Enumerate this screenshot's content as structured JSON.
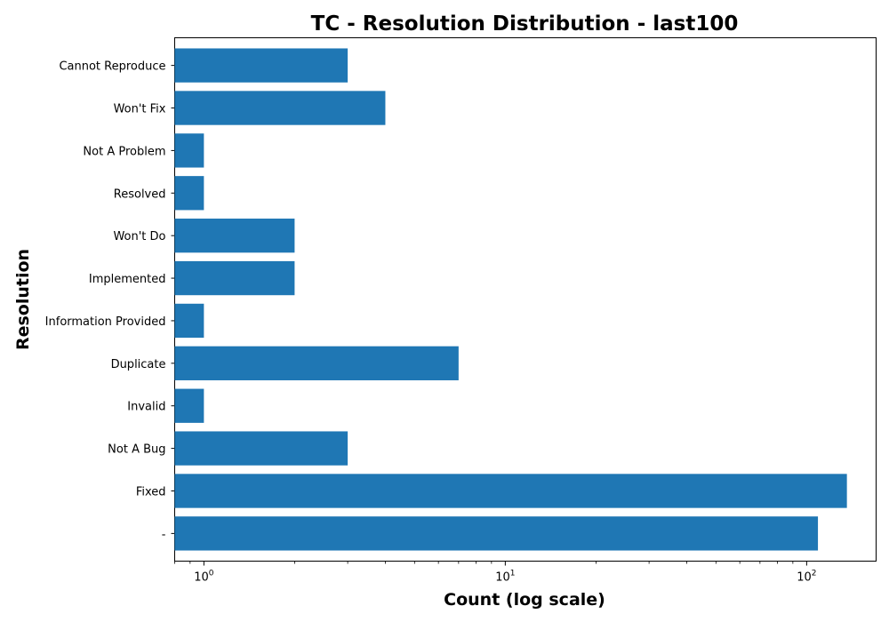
{
  "chart_data": {
    "type": "bar",
    "orientation": "horizontal",
    "title": "TC - Resolution Distribution - last100",
    "xlabel": "Count (log scale)",
    "ylabel": "Resolution",
    "x_scale": "log",
    "xlim": [
      0.8,
      170
    ],
    "x_ticks": [
      {
        "value": 1,
        "base": "10",
        "exp": "0"
      },
      {
        "value": 10,
        "base": "10",
        "exp": "1"
      },
      {
        "value": 100,
        "base": "10",
        "exp": "2"
      }
    ],
    "categories": [
      "-",
      "Fixed",
      "Not A Bug",
      "Invalid",
      "Duplicate",
      "Information Provided",
      "Implemented",
      "Won't Do",
      "Resolved",
      "Not A Problem",
      "Won't Fix",
      "Cannot Reproduce"
    ],
    "values": [
      109,
      136,
      3,
      1,
      7,
      1,
      2,
      2,
      1,
      1,
      4,
      3
    ],
    "bar_color": "#1f77b4",
    "grid": false,
    "legend": "none"
  }
}
